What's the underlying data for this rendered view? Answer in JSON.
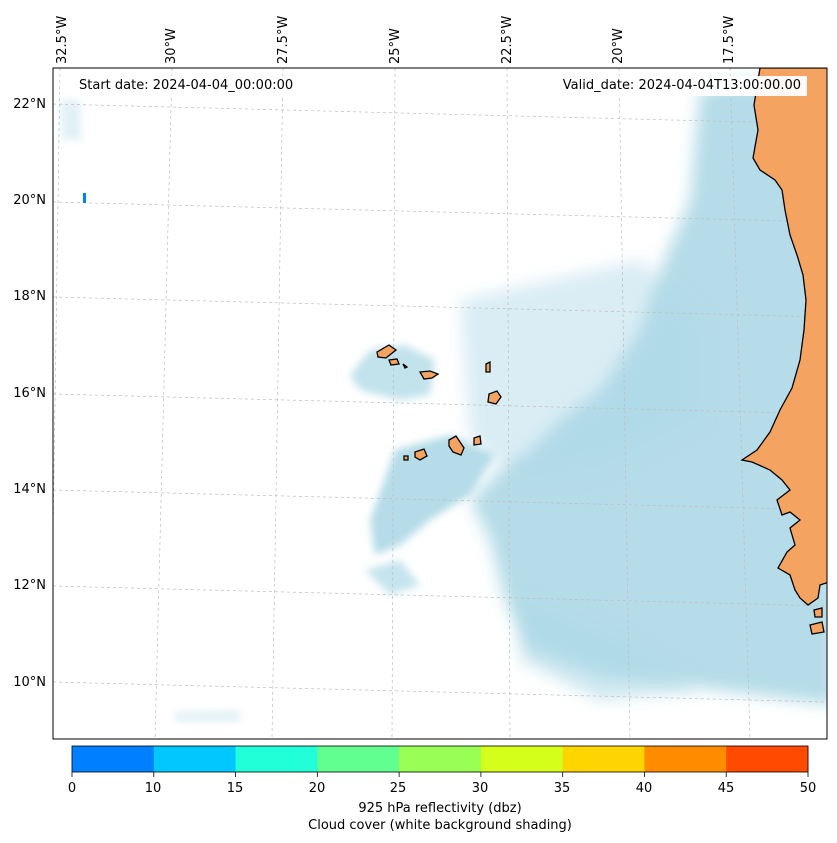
{
  "header": {
    "start_date": "Start date: 2024-04-04_00:00:00",
    "valid_date": "Valid_date: 2024-04-04T13:00:00.00"
  },
  "axes": {
    "lon_labels": [
      "32.5°W",
      "30°W",
      "27.5°W",
      "25°W",
      "22.5°W",
      "20°W",
      "17.5°W"
    ],
    "lat_labels": [
      "22°N",
      "20°N",
      "18°N",
      "16°N",
      "14°N",
      "12°N",
      "10°N"
    ]
  },
  "colorbar": {
    "ticks": [
      "0",
      "10",
      "15",
      "20",
      "25",
      "30",
      "35",
      "40",
      "45",
      "50"
    ],
    "colors": [
      "#0080ff",
      "#00c8ff",
      "#20ffd8",
      "#60ff90",
      "#99ff55",
      "#d4ff1a",
      "#ffd500",
      "#ff8c00",
      "#ff4a00"
    ],
    "label_line1": "925 hPa reflectivity (dbz)",
    "label_line2": "Cloud cover (white background shading)"
  },
  "colors": {
    "land": "#f4a460",
    "ocean_cloud": "#add8e6",
    "coastline": "#000000"
  }
}
